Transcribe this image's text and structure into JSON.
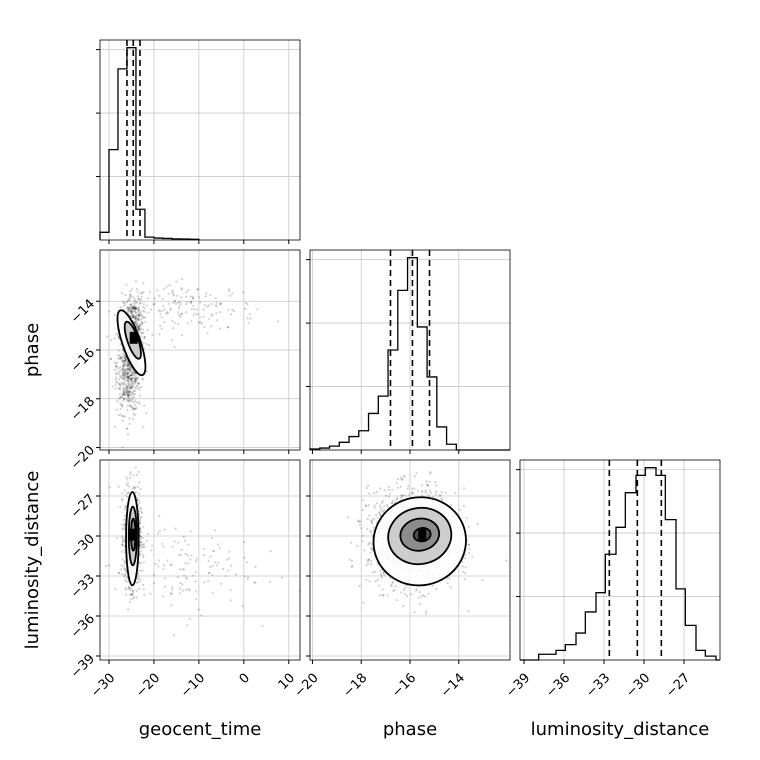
{
  "chart_data": {
    "type": "corner",
    "parameters": [
      "geocent_time",
      "phase",
      "luminosity_distance"
    ],
    "axis_labels": {
      "x": [
        "geocent_time",
        "phase",
        "luminosity_distance"
      ],
      "y": [
        "",
        "phase",
        "luminosity_distance"
      ]
    },
    "ranges": {
      "geocent_time": [
        -32,
        12.5
      ],
      "phase": [
        -20.1,
        -11.9
      ],
      "luminosity_distance": [
        -39.3,
        -24.3
      ]
    },
    "ticks": {
      "geocent_time": [
        -30,
        -20,
        -10,
        0,
        10
      ],
      "phase": [
        -20,
        -18,
        -16,
        -14
      ],
      "luminosity_distance": [
        -39,
        -36,
        -33,
        -30,
        -27
      ]
    },
    "tick_labels": {
      "geocent_time": [
        "−30",
        "−20",
        "−10",
        "0",
        "10"
      ],
      "phase": [
        "−20",
        "−18",
        "−16",
        "−14"
      ],
      "luminosity_distance": [
        "−39",
        "−36",
        "−33",
        "−30",
        "−27"
      ]
    },
    "quantiles": {
      "geocent_time": [
        -26.0,
        -24.6,
        -23.1
      ],
      "phase": [
        -16.8,
        -15.9,
        -15.2
      ],
      "luminosity_distance": [
        -32.6,
        -30.5,
        -28.7
      ]
    },
    "histograms": {
      "geocent_time": {
        "edges": [
          -32,
          -30,
          -28,
          -26,
          -24,
          -22,
          -20,
          -18,
          -16,
          -14,
          -12,
          -10
        ],
        "counts": [
          0.04,
          0.47,
          0.89,
          1.0,
          0.16,
          0.015,
          0.01,
          0.008,
          0.006,
          0.005,
          0.004
        ]
      },
      "phase": {
        "edges": [
          -20.1,
          -19.7,
          -19.3,
          -18.9,
          -18.5,
          -18.1,
          -17.7,
          -17.3,
          -16.9,
          -16.5,
          -16.1,
          -15.7,
          -15.3,
          -14.9,
          -14.5,
          -14.1,
          -13.7,
          -13.3,
          -12.9,
          -12.5,
          -12.1,
          -11.9
        ],
        "counts": [
          0.005,
          0.01,
          0.02,
          0.04,
          0.07,
          0.1,
          0.19,
          0.28,
          0.52,
          0.83,
          1.0,
          0.64,
          0.38,
          0.12,
          0.03,
          0.0,
          0.0,
          0.0,
          0.0,
          0.0,
          0.0
        ]
      },
      "luminosity_distance": {
        "edges": [
          -39.3,
          -37.9,
          -36.6,
          -35.9,
          -35.1,
          -34.4,
          -33.6,
          -32.9,
          -32.1,
          -31.4,
          -30.6,
          -29.9,
          -29.1,
          -28.4,
          -27.6,
          -26.9,
          -26.1,
          -25.4,
          -24.6,
          -24.3
        ],
        "counts": [
          0.0,
          0.03,
          0.05,
          0.08,
          0.14,
          0.25,
          0.35,
          0.55,
          0.69,
          0.87,
          0.96,
          1.0,
          0.96,
          0.73,
          0.37,
          0.18,
          0.05,
          0.02,
          0.0
        ]
      }
    },
    "scatter_clouds": {
      "phase_vs_geocent_time": [
        {
          "cx": -25.5,
          "cy": -16.6,
          "sx": 1.4,
          "sy": 1.0,
          "n": 700
        },
        {
          "cx": -24.5,
          "cy": -14.9,
          "sx": 1.1,
          "sy": 0.6,
          "n": 300
        },
        {
          "cx": -12,
          "cy": -14.3,
          "sx": 7.5,
          "sy": 0.5,
          "n": 160
        }
      ],
      "luminosity_distance_vs_geocent_time": [
        {
          "cx": -24.8,
          "cy": -30.1,
          "sx": 0.9,
          "sy": 1.8,
          "n": 900
        },
        {
          "cx": -14,
          "cy": -32.4,
          "sx": 8,
          "sy": 1.7,
          "n": 140
        }
      ],
      "luminosity_distance_vs_phase": [
        {
          "cx": -15.9,
          "cy": -30.2,
          "sx": 0.9,
          "sy": 1.8,
          "n": 1400
        }
      ]
    },
    "contours": {
      "phase_vs_geocent_time": [
        {
          "cx": -25.0,
          "cy": -15.7,
          "rx": 2.0,
          "ry": 1.4,
          "rot": 0.55
        },
        {
          "cx": -24.7,
          "cy": -15.6,
          "rx": 1.2,
          "ry": 0.8,
          "rot": 0.55
        }
      ],
      "luminosity_distance_vs_geocent_time": [
        {
          "cx": -24.8,
          "cy": -30.2,
          "rx": 1.4,
          "ry": 3.5,
          "rot": 0
        },
        {
          "cx": -24.7,
          "cy": -30.0,
          "rx": 0.9,
          "ry": 2.2,
          "rot": 0
        },
        {
          "cx": -24.6,
          "cy": -29.9,
          "rx": 0.5,
          "ry": 1.2,
          "rot": 0
        }
      ],
      "luminosity_distance_vs_phase": [
        {
          "cx": -15.6,
          "cy": -30.4,
          "rx": 1.9,
          "ry": 3.3,
          "rot": 0.35
        },
        {
          "cx": -15.6,
          "cy": -30.0,
          "rx": 1.3,
          "ry": 2.1,
          "rot": 0.35
        },
        {
          "cx": -15.6,
          "cy": -29.9,
          "rx": 0.8,
          "ry": 1.2,
          "rot": 0.3
        },
        {
          "cx": -15.5,
          "cy": -29.9,
          "rx": 0.35,
          "ry": 0.5,
          "rot": 0.3
        }
      ]
    },
    "peaks": {
      "phase_vs_geocent_time": {
        "x": -24.5,
        "y": -15.5
      },
      "luminosity_distance_vs_geocent_time": {
        "x": -24.6,
        "y": -29.9
      },
      "luminosity_distance_vs_phase": {
        "x": -15.5,
        "y": -29.9
      }
    },
    "grid": true
  }
}
